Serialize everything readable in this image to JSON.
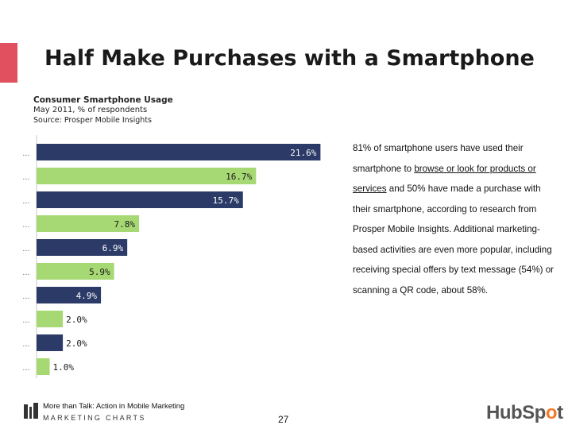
{
  "header": {
    "title": "Half Make Purchases with a Smartphone",
    "accent_color": "#e0505e"
  },
  "chart_data": {
    "type": "bar",
    "orientation": "horizontal",
    "title": "Consumer Smartphone Usage",
    "subtitle": "May 2011, % of respondents",
    "source": "Source: Prosper Mobile Insights",
    "categories": [
      "…",
      "…",
      "…",
      "…",
      "…",
      "…",
      "…",
      "…",
      "…",
      "…"
    ],
    "values": [
      21.6,
      16.7,
      15.7,
      7.8,
      6.9,
      5.9,
      4.9,
      2.0,
      2.0,
      1.0
    ],
    "value_labels": [
      "21.6%",
      "16.7%",
      "15.7%",
      "7.8%",
      "6.9%",
      "5.9%",
      "4.9%",
      "2.0%",
      "2.0%",
      "1.0%"
    ],
    "bar_colors": [
      "#2b3a67",
      "#a6d873",
      "#2b3a67",
      "#a6d873",
      "#2b3a67",
      "#a6d873",
      "#2b3a67",
      "#a6d873",
      "#2b3a67",
      "#a6d873"
    ],
    "xlim": [
      0,
      22
    ],
    "grid": false,
    "legend": "none"
  },
  "paragraph": {
    "p1": "81% of smartphone users have used their smartphone to ",
    "link": "browse or look for products or services",
    "p2": " and 50% have made a purchase with their smartphone, according to research from Prosper Mobile Insights. Additional marketing-based activities are even more popular, including receiving special offers by text message (54%) or scanning a QR code, about 58%."
  },
  "footer": {
    "source_title": "More than Talk: Action in Mobile Marketing",
    "brand": "MARKETING CHARTS",
    "page_number": "27",
    "logo_hub": "HubSp",
    "logo_o": "o",
    "logo_t": "t"
  },
  "colors": {
    "dark_bar": "#2b3a67",
    "light_bar": "#a6d873",
    "hubspot_orange": "#f47a26"
  }
}
